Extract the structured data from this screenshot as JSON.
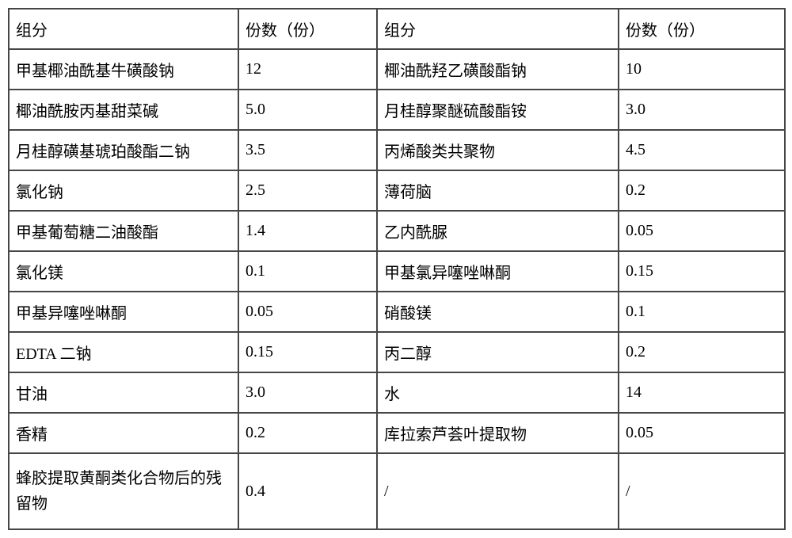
{
  "table": {
    "background_color": "#ffffff",
    "border_color": "#464646",
    "font_family": "SimSun",
    "font_size": 20,
    "text_color": "#000000",
    "cell_padding": 10,
    "border_width": 2,
    "columns": {
      "col1_width": 290,
      "col2_width": 175,
      "col3_width": 305,
      "col4_width": 210
    },
    "header": {
      "c1": "组分",
      "c2": "份数（份）",
      "c3": "组分",
      "c4": "份数（份）"
    },
    "rows": [
      {
        "c1": "甲基椰油酰基牛磺酸钠",
        "c2": "12",
        "c3": "椰油酰羟乙磺酸酯钠",
        "c4": "10"
      },
      {
        "c1": "椰油酰胺丙基甜菜碱",
        "c2": "5.0",
        "c3": "月桂醇聚醚硫酸酯铵",
        "c4": "3.0"
      },
      {
        "c1": "月桂醇磺基琥珀酸酯二钠",
        "c2": "3.5",
        "c3": "丙烯酸类共聚物",
        "c4": "4.5"
      },
      {
        "c1": "氯化钠",
        "c2": "2.5",
        "c3": "薄荷脑",
        "c4": "0.2"
      },
      {
        "c1": "甲基葡萄糖二油酸酯",
        "c2": "1.4",
        "c3": "乙内酰脲",
        "c4": "0.05"
      },
      {
        "c1": "氯化镁",
        "c2": "0.1",
        "c3": "甲基氯异噻唑啉酮",
        "c4": "0.15"
      },
      {
        "c1": "甲基异噻唑啉酮",
        "c2": "0.05",
        "c3": "硝酸镁",
        "c4": "0.1"
      },
      {
        "c1": "EDTA 二钠",
        "c2": "0.15",
        "c3": "丙二醇",
        "c4": "0.2"
      },
      {
        "c1": "甘油",
        "c2": "3.0",
        "c3": "水",
        "c4": "14"
      },
      {
        "c1": "香精",
        "c2": "0.2",
        "c3": "库拉索芦荟叶提取物",
        "c4": "0.05"
      },
      {
        "c1": "蜂胶提取黄酮类化合物后的残留物",
        "c2": "0.4",
        "c3": "/",
        "c4": "/"
      }
    ]
  }
}
